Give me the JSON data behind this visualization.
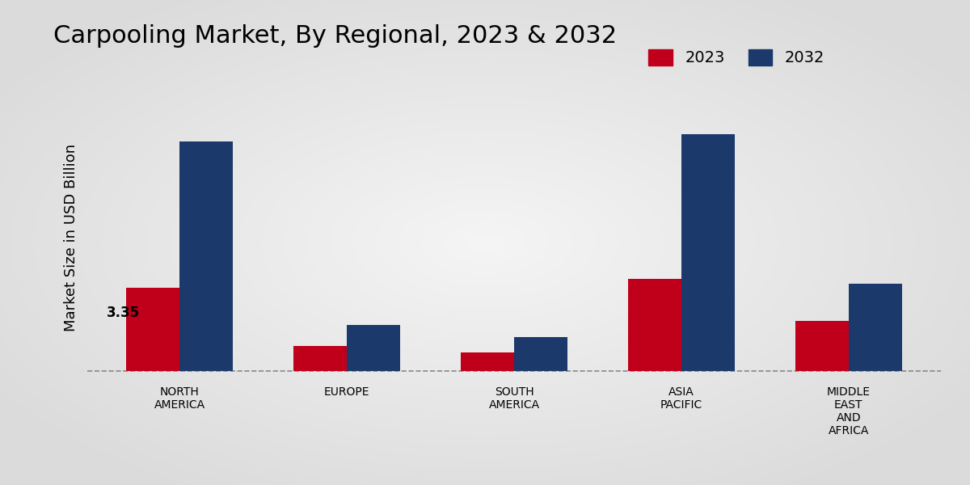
{
  "title": "Carpooling Market, By Regional, 2023 & 2032",
  "ylabel": "Market Size in USD Billion",
  "categories": [
    "NORTH\nAMERICA",
    "EUROPE",
    "SOUTH\nAMERICA",
    "ASIA\nPACIFIC",
    "MIDDLE\nEAST\nAND\nAFRICA"
  ],
  "values_2023": [
    3.35,
    1.0,
    0.75,
    3.7,
    2.0
  ],
  "values_2032": [
    9.2,
    1.85,
    1.35,
    9.5,
    3.5
  ],
  "color_2023": "#c0001a",
  "color_2032": "#1b3a6b",
  "annotation_text": "3.35",
  "annotation_index": 0,
  "bar_width": 0.32,
  "ylim": [
    -0.3,
    11
  ],
  "bg_light": "#f0f0f0",
  "bg_dark": "#c8c8c8",
  "legend_labels": [
    "2023",
    "2032"
  ],
  "title_fontsize": 22,
  "axis_label_fontsize": 13,
  "tick_fontsize": 10,
  "footer_color": "#cc0000"
}
